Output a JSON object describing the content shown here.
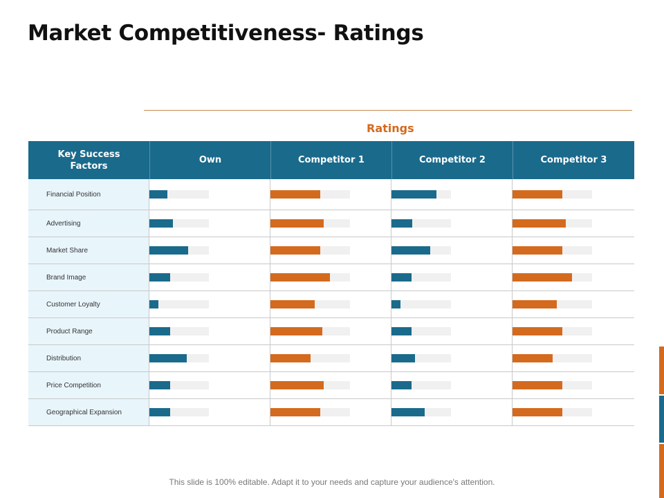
{
  "title": "Market Competitiveness- Ratings",
  "ratings_label": "Ratings",
  "colors": {
    "header": "#1a6a8c",
    "accent": "#d46a1e",
    "track": "#f0f0f0"
  },
  "table": {
    "factor_header": "Key Success Factors",
    "columns": [
      {
        "label": "Own",
        "color": "blue"
      },
      {
        "label": "Competitor 1",
        "color": "orange"
      },
      {
        "label": "Competitor 2",
        "color": "blue"
      },
      {
        "label": "Competitor 3",
        "color": "orange"
      }
    ],
    "rows": [
      {
        "factor": "Financial Position",
        "ratings": [
          [
            0.3,
            1.0
          ],
          [
            0.63,
            1.0
          ],
          [
            0.75,
            1.0
          ],
          [
            0.63,
            1.0
          ]
        ]
      },
      {
        "factor": "Advertising",
        "ratings": [
          [
            0.4,
            1.0
          ],
          [
            0.67,
            1.0
          ],
          [
            0.35,
            1.0
          ],
          [
            0.67,
            1.0
          ]
        ]
      },
      {
        "factor": "Market Share",
        "ratings": [
          [
            0.65,
            1.0
          ],
          [
            0.63,
            1.0
          ],
          [
            0.65,
            1.0
          ],
          [
            0.63,
            1.0
          ]
        ]
      },
      {
        "factor": "Brand Image",
        "ratings": [
          [
            0.35,
            1.0
          ],
          [
            0.75,
            1.0
          ],
          [
            0.34,
            1.0
          ],
          [
            0.75,
            1.0
          ]
        ]
      },
      {
        "factor": "Customer Loyalty",
        "ratings": [
          [
            0.15,
            1.0
          ],
          [
            0.56,
            1.0
          ],
          [
            0.15,
            1.0
          ],
          [
            0.56,
            1.0
          ]
        ]
      },
      {
        "factor": "Product Range",
        "ratings": [
          [
            0.35,
            1.0
          ],
          [
            0.65,
            1.0
          ],
          [
            0.34,
            1.0
          ],
          [
            0.63,
            1.0
          ]
        ]
      },
      {
        "factor": "Distribution",
        "ratings": [
          [
            0.63,
            1.0
          ],
          [
            0.5,
            1.0
          ],
          [
            0.4,
            1.0
          ],
          [
            0.5,
            1.0
          ]
        ]
      },
      {
        "factor": "Price Competition",
        "ratings": [
          [
            0.35,
            1.0
          ],
          [
            0.67,
            1.0
          ],
          [
            0.34,
            1.0
          ],
          [
            0.63,
            1.0
          ]
        ]
      },
      {
        "factor": "Geographical Expansion",
        "ratings": [
          [
            0.35,
            1.0
          ],
          [
            0.63,
            1.0
          ],
          [
            0.56,
            1.0
          ],
          [
            0.63,
            1.0
          ]
        ]
      }
    ]
  },
  "footer": "This slide is 100% editable. Adapt it to your needs and capture your audience's attention."
}
